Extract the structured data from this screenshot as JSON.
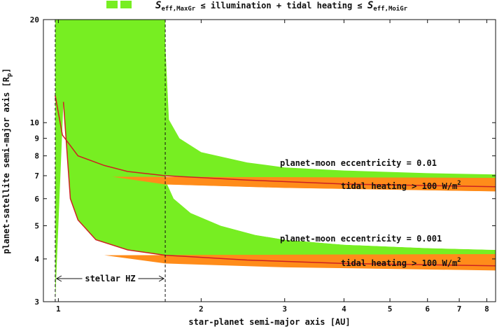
{
  "chart_data": {
    "type": "area",
    "xlabel": "star-planet semi-major axis [AU]",
    "ylabel_main": "planet-satellite semi-major axis [R",
    "ylabel_sub": "p",
    "ylabel_end": "]",
    "x_scale": "log",
    "y_scale": "log",
    "xlim": [
      0.93,
      8.35
    ],
    "ylim": [
      3,
      20
    ],
    "x_ticks": [
      1,
      2,
      3,
      4,
      5,
      6,
      7,
      8
    ],
    "y_ticks": [
      3,
      4,
      5,
      6,
      7,
      8,
      9,
      10,
      20
    ],
    "legend": {
      "placement": "top-center",
      "swatch_color": "#77ee22",
      "S_left": "S",
      "sub_left": "eff,MaxGr",
      "middle": " ≤ illumination + tidal heating ≤ ",
      "S_right": "S",
      "sub_right": "eff,MoiGr"
    },
    "colors": {
      "habitable_zone": "#77ee22",
      "tidal_band": "#ff8c1a",
      "curve": "#cc2222"
    },
    "stellar_hz": {
      "inner_au": 0.985,
      "outer_au": 1.68,
      "label": "stellar HZ"
    },
    "series": [
      {
        "name": "planet-moon eccentricity = 0.01",
        "habitable_lower": [
          [
            0.985,
            12.0
          ],
          [
            1.02,
            9.2
          ],
          [
            1.1,
            8.0
          ],
          [
            1.25,
            7.5
          ],
          [
            1.4,
            7.2
          ],
          [
            1.68,
            7.0
          ],
          [
            2.5,
            6.8
          ],
          [
            4,
            6.62
          ],
          [
            8.35,
            6.5
          ]
        ],
        "habitable_upper": [
          [
            1.68,
            17.0
          ],
          [
            1.71,
            10.2
          ],
          [
            1.8,
            9.0
          ],
          [
            2.0,
            8.2
          ],
          [
            2.5,
            7.65
          ],
          [
            3.0,
            7.4
          ],
          [
            4.0,
            7.25
          ],
          [
            6.0,
            7.12
          ],
          [
            8.35,
            7.06
          ]
        ],
        "tidal_band_upper": [
          [
            1.3,
            6.95
          ],
          [
            8.35,
            6.9
          ]
        ],
        "tidal_band_lower": [
          [
            1.68,
            6.6
          ],
          [
            3.0,
            6.45
          ],
          [
            8.35,
            6.3
          ]
        ],
        "annotation": "tidal heating > 100 W/m",
        "annotation_sup": "2"
      },
      {
        "name": "planet-moon eccentricity = 0.001",
        "habitable_lower": [
          [
            1.025,
            11.5
          ],
          [
            1.06,
            6.0
          ],
          [
            1.1,
            5.2
          ],
          [
            1.2,
            4.55
          ],
          [
            1.4,
            4.25
          ],
          [
            1.68,
            4.1
          ],
          [
            2.5,
            3.97
          ],
          [
            4,
            3.88
          ],
          [
            8.35,
            3.82
          ]
        ],
        "habitable_upper": [
          [
            1.68,
            6.8
          ],
          [
            1.75,
            6.0
          ],
          [
            1.9,
            5.45
          ],
          [
            2.2,
            5.0
          ],
          [
            2.6,
            4.7
          ],
          [
            3.0,
            4.55
          ],
          [
            4.0,
            4.4
          ],
          [
            6.0,
            4.3
          ],
          [
            8.35,
            4.25
          ]
        ],
        "tidal_band_upper": [
          [
            1.25,
            4.1
          ],
          [
            8.35,
            4.13
          ]
        ],
        "tidal_band_lower": [
          [
            1.68,
            3.88
          ],
          [
            3.0,
            3.78
          ],
          [
            8.35,
            3.7
          ]
        ],
        "annotation": "tidal heating > 100 W/m",
        "annotation_sup": "2"
      }
    ]
  }
}
